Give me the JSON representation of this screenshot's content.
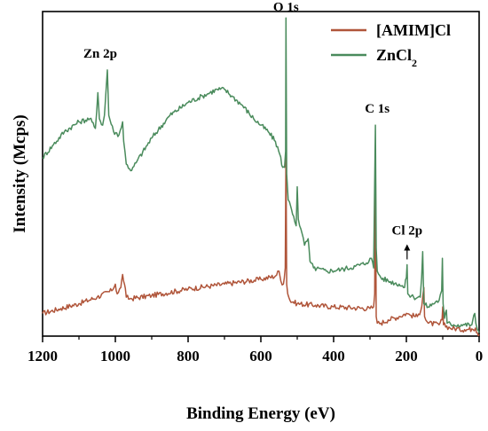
{
  "chart_data": {
    "type": "line",
    "xlabel": "Binding Energy (eV)",
    "ylabel": "Intensity (Mcps)",
    "xlim": [
      1200,
      0
    ],
    "x_reversed": true,
    "ylim": [
      0,
      100
    ],
    "y_tick_labels_shown": false,
    "x_ticks": [
      1200,
      1000,
      800,
      600,
      400,
      200,
      0
    ],
    "grid": false,
    "legend_position": "top-right",
    "series": [
      {
        "name": "[AMIM]Cl",
        "color": "#b0553a",
        "points": [
          [
            1200,
            7
          ],
          [
            1150,
            8.5
          ],
          [
            1100,
            10
          ],
          [
            1050,
            12
          ],
          [
            1010,
            14
          ],
          [
            1000,
            16
          ],
          [
            995,
            13
          ],
          [
            985,
            15
          ],
          [
            980,
            19
          ],
          [
            975,
            16
          ],
          [
            970,
            12
          ],
          [
            960,
            11.5
          ],
          [
            900,
            12.5
          ],
          [
            800,
            14.5
          ],
          [
            700,
            16
          ],
          [
            600,
            17.5
          ],
          [
            560,
            18.5
          ],
          [
            550,
            20
          ],
          [
            545,
            17
          ],
          [
            538,
            16
          ],
          [
            533,
            21
          ],
          [
            531,
            58
          ],
          [
            529,
            16
          ],
          [
            526,
            13
          ],
          [
            520,
            11
          ],
          [
            500,
            10
          ],
          [
            450,
            9.5
          ],
          [
            400,
            9
          ],
          [
            300,
            8.5
          ],
          [
            290,
            9
          ],
          [
            287,
            13
          ],
          [
            285,
            56
          ],
          [
            283,
            6
          ],
          [
            280,
            4
          ],
          [
            270,
            4
          ],
          [
            250,
            5
          ],
          [
            220,
            6
          ],
          [
            200,
            7
          ],
          [
            190,
            6.5
          ],
          [
            170,
            6
          ],
          [
            160,
            8
          ],
          [
            155,
            12
          ],
          [
            152,
            15
          ],
          [
            150,
            6
          ],
          [
            140,
            4
          ],
          [
            110,
            3.5
          ],
          [
            102,
            5
          ],
          [
            100,
            9
          ],
          [
            98,
            3.5
          ],
          [
            80,
            2.5
          ],
          [
            40,
            2
          ],
          [
            20,
            2.2
          ],
          [
            10,
            2.5
          ],
          [
            5,
            1
          ],
          [
            0,
            0.5
          ]
        ]
      },
      {
        "name": "ZnCl₂",
        "color": "#4a8b5c",
        "points": [
          [
            1200,
            55
          ],
          [
            1170,
            59
          ],
          [
            1140,
            63
          ],
          [
            1100,
            66
          ],
          [
            1070,
            67
          ],
          [
            1055,
            64
          ],
          [
            1048,
            75
          ],
          [
            1044,
            67
          ],
          [
            1035,
            65
          ],
          [
            1030,
            68
          ],
          [
            1022,
            82
          ],
          [
            1018,
            68
          ],
          [
            1005,
            63
          ],
          [
            990,
            62
          ],
          [
            980,
            66
          ],
          [
            977,
            60
          ],
          [
            970,
            53
          ],
          [
            955,
            51
          ],
          [
            940,
            54
          ],
          [
            900,
            61
          ],
          [
            850,
            68
          ],
          [
            800,
            72
          ],
          [
            760,
            74
          ],
          [
            740,
            75
          ],
          [
            720,
            76
          ],
          [
            700,
            76
          ],
          [
            680,
            74
          ],
          [
            650,
            71
          ],
          [
            620,
            67
          ],
          [
            600,
            65
          ],
          [
            580,
            63
          ],
          [
            560,
            60
          ],
          [
            548,
            56
          ],
          [
            540,
            52
          ],
          [
            535,
            52
          ],
          [
            532,
            57
          ],
          [
            531,
            98
          ],
          [
            529,
            50
          ],
          [
            525,
            42
          ],
          [
            518,
            40
          ],
          [
            510,
            37
          ],
          [
            503,
            34
          ],
          [
            500,
            46
          ],
          [
            497,
            36
          ],
          [
            490,
            33
          ],
          [
            480,
            28
          ],
          [
            470,
            30
          ],
          [
            465,
            23
          ],
          [
            455,
            21
          ],
          [
            420,
            20
          ],
          [
            380,
            20.5
          ],
          [
            340,
            21.5
          ],
          [
            310,
            22.5
          ],
          [
            300,
            24
          ],
          [
            296,
            24
          ],
          [
            290,
            21
          ],
          [
            285,
            65
          ],
          [
            283,
            27
          ],
          [
            280,
            20
          ],
          [
            270,
            18
          ],
          [
            250,
            17
          ],
          [
            220,
            16
          ],
          [
            205,
            15
          ],
          [
            200,
            18
          ],
          [
            198,
            22
          ],
          [
            196,
            13
          ],
          [
            180,
            12
          ],
          [
            162,
            12
          ],
          [
            158,
            18
          ],
          [
            155,
            26
          ],
          [
            152,
            10
          ],
          [
            140,
            9
          ],
          [
            120,
            10.5
          ],
          [
            110,
            11
          ],
          [
            103,
            14
          ],
          [
            101,
            24
          ],
          [
            99,
            10
          ],
          [
            95,
            5.5
          ],
          [
            90,
            8
          ],
          [
            88,
            4
          ],
          [
            70,
            3.5
          ],
          [
            40,
            3.5
          ],
          [
            20,
            3.5
          ],
          [
            12,
            7
          ],
          [
            9,
            4
          ],
          [
            5,
            2
          ],
          [
            0,
            1
          ]
        ]
      }
    ],
    "annotations": [
      {
        "text": "O 1s",
        "x": 531,
        "y": 98
      },
      {
        "text": "Zn 2p",
        "x": 1022,
        "y": 82
      },
      {
        "text": "C 1s",
        "x": 285,
        "y": 65
      },
      {
        "text": "Cl 2p",
        "x": 198,
        "y": 22,
        "arrow": true
      }
    ]
  }
}
